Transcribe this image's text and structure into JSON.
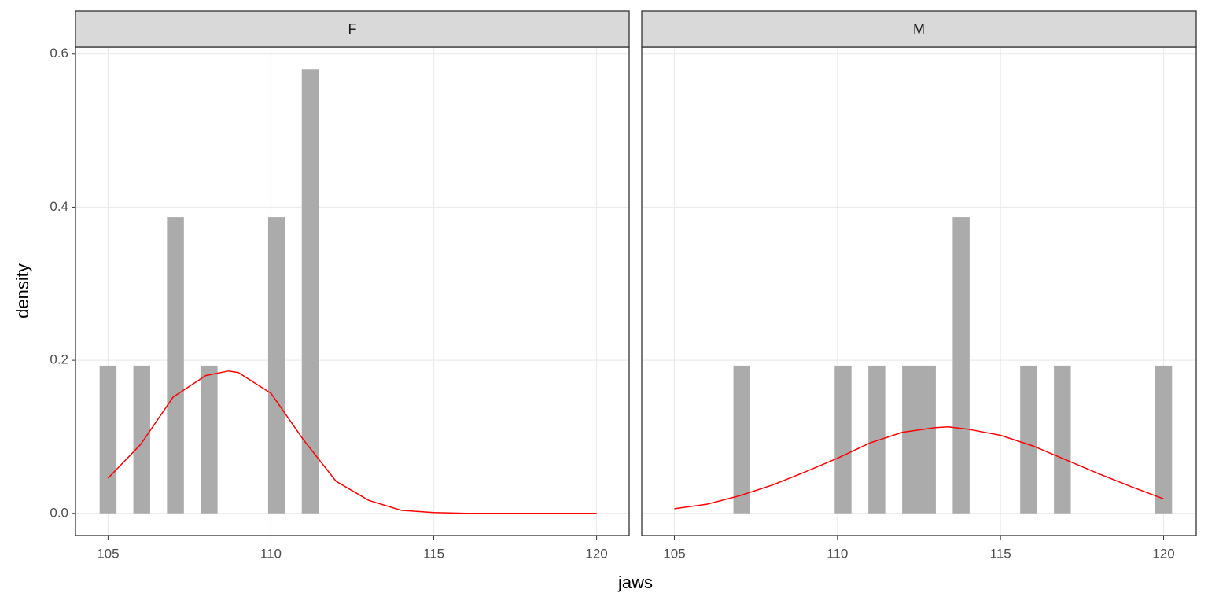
{
  "axis_labels": {
    "x": "jaws",
    "y": "density"
  },
  "chart_data": [
    {
      "type": "histogram",
      "title": "F",
      "bins": [
        104.741,
        105.259,
        105.776,
        106.293,
        106.81,
        107.328,
        107.845,
        108.362,
        108.879,
        109.397,
        109.914,
        110.431,
        110.948,
        111.466,
        111.983,
        112.5,
        113.017,
        113.534,
        114.052,
        114.569,
        115.086,
        115.603,
        116.121,
        116.638,
        117.155,
        117.672,
        118.19,
        118.707,
        119.224,
        119.741,
        120.259
      ],
      "values": [
        0.193,
        0,
        0.193,
        0,
        0.387,
        0,
        0.193,
        0,
        0,
        0,
        0.387,
        0,
        0.58,
        0,
        0,
        0,
        0,
        0,
        0,
        0,
        0,
        0,
        0,
        0,
        0,
        0,
        0,
        0,
        0,
        0
      ],
      "color": "#ababab",
      "density": {
        "color": "#ff0000",
        "x": [
          105,
          106,
          107,
          108,
          108.7,
          109,
          110,
          111,
          112,
          113,
          114,
          115,
          116,
          117,
          118,
          119,
          120
        ],
        "values": [
          0.046,
          0.09,
          0.152,
          0.18,
          0.186,
          0.184,
          0.157,
          0.096,
          0.042,
          0.017,
          0.004,
          0.001,
          0,
          0,
          0,
          0,
          0
        ]
      },
      "xlim": [
        104,
        121
      ],
      "ylim": [
        -0.029,
        0.609
      ],
      "xticks": [
        105,
        110,
        115,
        120
      ],
      "yticks": [
        {
          "value": 0,
          "label": "0.0"
        },
        0.2,
        0.4,
        0.6
      ],
      "grid": true
    },
    {
      "type": "histogram",
      "title": "M",
      "bins": [
        104.741,
        105.259,
        105.776,
        106.293,
        106.81,
        107.328,
        107.845,
        108.362,
        108.879,
        109.397,
        109.914,
        110.431,
        110.948,
        111.466,
        111.983,
        112.5,
        113.017,
        113.534,
        114.052,
        114.569,
        115.086,
        115.603,
        116.121,
        116.638,
        117.155,
        117.672,
        118.19,
        118.707,
        119.224,
        119.741,
        120.259
      ],
      "values": [
        0,
        0,
        0,
        0,
        0.193,
        0,
        0,
        0,
        0,
        0,
        0.193,
        0,
        0.193,
        0,
        0.193,
        0.193,
        0,
        0.387,
        0,
        0,
        0,
        0.193,
        0,
        0.193,
        0,
        0,
        0,
        0,
        0,
        0.193
      ],
      "color": "#ababab",
      "density": {
        "color": "#ff0000",
        "x": [
          105,
          106,
          107,
          108,
          109,
          110,
          111,
          112,
          113,
          113.4,
          114,
          115,
          116,
          117,
          118,
          119,
          120
        ],
        "values": [
          0.006,
          0.012,
          0.023,
          0.037,
          0.054,
          0.072,
          0.092,
          0.106,
          0.112,
          0.113,
          0.11,
          0.102,
          0.088,
          0.07,
          0.052,
          0.035,
          0.019
        ]
      },
      "xlim": [
        104,
        121
      ],
      "ylim": [
        -0.029,
        0.609
      ],
      "xticks": [
        105,
        110,
        115,
        120
      ],
      "yticks": [
        {
          "value": 0,
          "label": "0.0"
        },
        0.2,
        0.4,
        0.6
      ],
      "grid": true
    }
  ]
}
